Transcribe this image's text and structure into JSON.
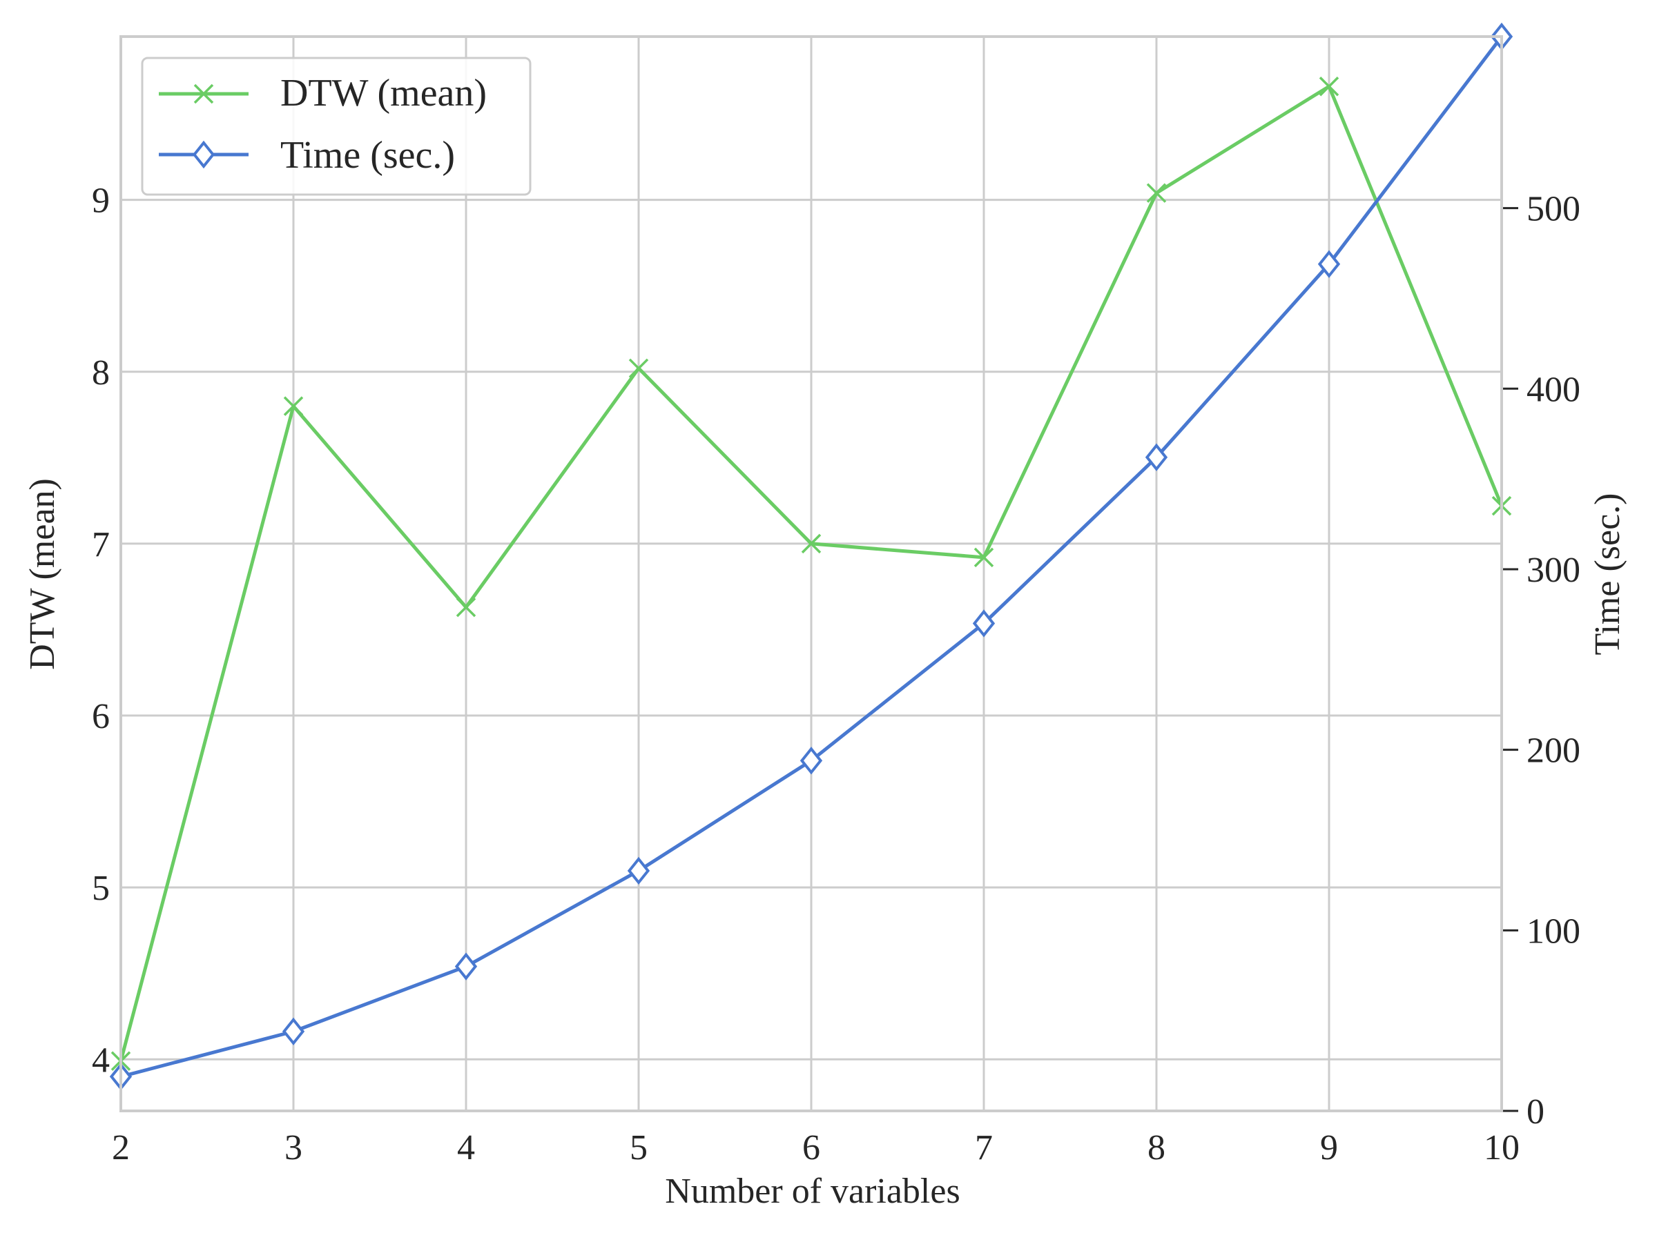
{
  "chart_data": {
    "type": "line",
    "xlabel": "Number of variables",
    "ylabel_left": "DTW (mean)",
    "ylabel_right": "Time (sec.)",
    "x": [
      2,
      3,
      4,
      5,
      6,
      7,
      8,
      9,
      10
    ],
    "xlim": [
      2,
      10
    ],
    "ylim_left": [
      3.7,
      9.95
    ],
    "ylim_right": [
      0,
      595
    ],
    "xticks": [
      2,
      3,
      4,
      5,
      6,
      7,
      8,
      9,
      10
    ],
    "yticks_left": [
      4,
      5,
      6,
      7,
      8,
      9
    ],
    "yticks_right": [
      0,
      100,
      200,
      300,
      400,
      500
    ],
    "grid": true,
    "legend_position": "top-left",
    "series": [
      {
        "name": "DTW (mean)",
        "axis": "left",
        "color": "#6acc64",
        "marker": "x",
        "values": [
          3.99,
          7.8,
          6.63,
          8.02,
          7.0,
          6.92,
          9.04,
          9.66,
          7.22
        ]
      },
      {
        "name": "Time (sec.)",
        "axis": "right",
        "color": "#4878d0",
        "marker": "diamond",
        "values": [
          19,
          44,
          80,
          133,
          194,
          270,
          362,
          469,
          595
        ]
      }
    ]
  }
}
